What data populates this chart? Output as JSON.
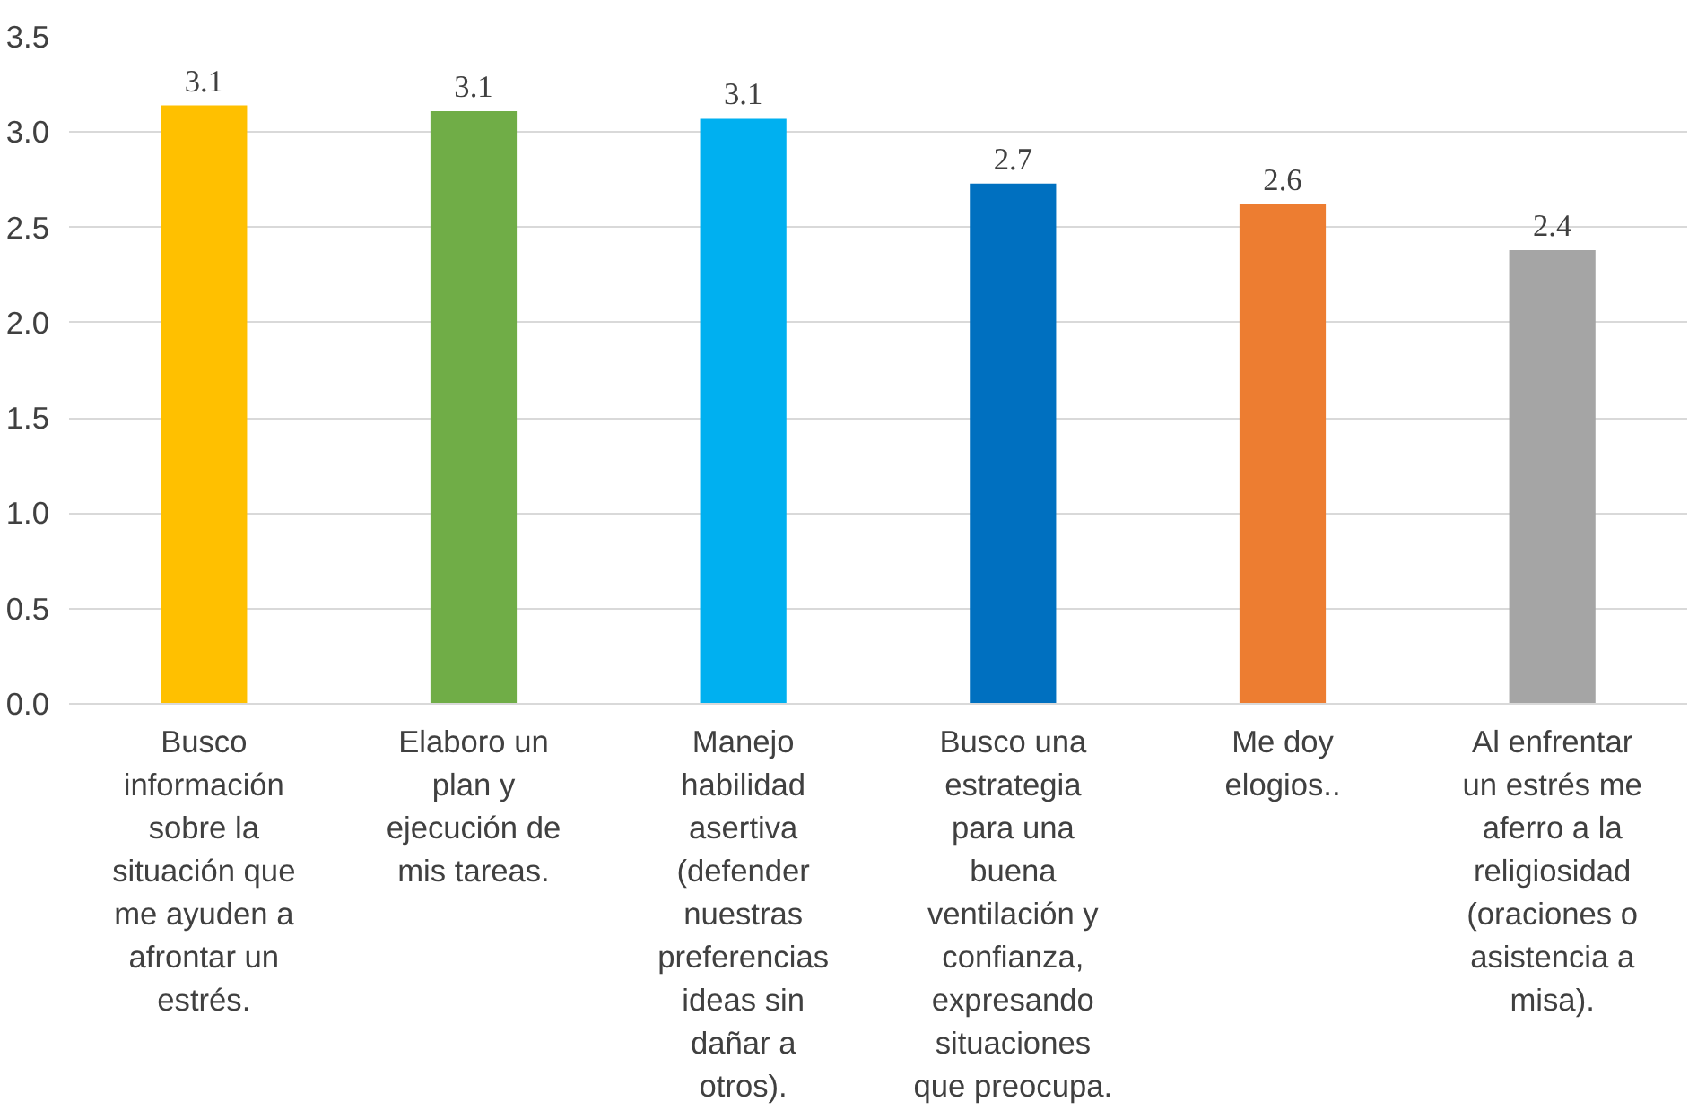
{
  "chart_data": {
    "type": "bar",
    "categories": [
      "Busco información sobre la situación que me ayuden a afrontar un estrés.",
      "Elaboro un plan y ejecución de mis tareas.",
      "Manejo habilidad asertiva (defender nuestras preferencias ideas sin dañar a otros).",
      "Busco una estrategia para una buena ventilación y confianza, expresando situaciones que preocupa.",
      "Me doy elogios..",
      "Al enfrentar un estrés me aferro a la religiosidad (oraciones o asistencia a misa)."
    ],
    "values": [
      3.14,
      3.11,
      3.07,
      2.73,
      2.62,
      2.38
    ],
    "value_labels": [
      "3.1",
      "3.1",
      "3.1",
      "2.7",
      "2.6",
      "2.4"
    ],
    "colors": [
      "#ffc000",
      "#70ad47",
      "#00b0f0",
      "#0070c0",
      "#ed7d31",
      "#a5a5a5"
    ],
    "ylim": [
      0,
      3.5
    ],
    "yticks": [
      {
        "value": 0,
        "label": "0.0"
      },
      {
        "value": 0.5,
        "label": "0.5"
      },
      {
        "value": 1,
        "label": "1.0"
      },
      {
        "value": 1.5,
        "label": "1.5"
      },
      {
        "value": 2,
        "label": "2.0"
      },
      {
        "value": 2.5,
        "label": "2.5"
      },
      {
        "value": 3,
        "label": "3.0"
      },
      {
        "value": 3.5,
        "label": "3.5"
      }
    ],
    "grid": "y"
  }
}
